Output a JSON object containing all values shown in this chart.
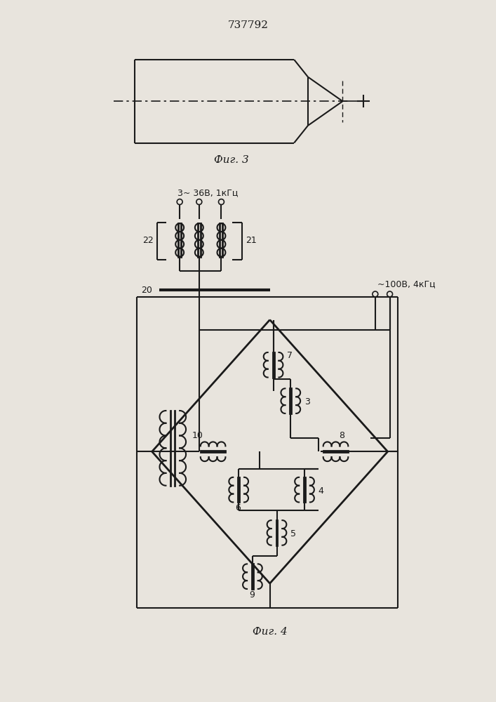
{
  "title_text": "737792",
  "fig3_label": "Фиг. 3",
  "fig4_label": "Фиг. 4",
  "bg_color": "#e8e4dd",
  "line_color": "#1a1a1a",
  "label_3_36V": "3~ 36В, 1кГц",
  "label_100V": "~100В, 4кГц",
  "label_22": "22",
  "label_21": "21",
  "label_20": "20"
}
